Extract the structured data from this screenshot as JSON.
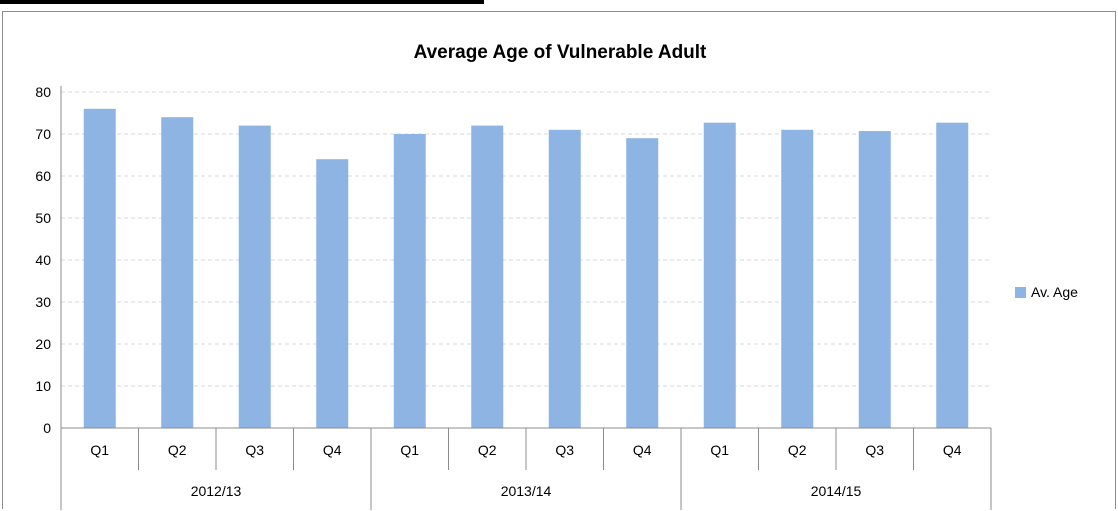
{
  "chart_data": {
    "type": "bar",
    "title": "Average Age of Vulnerable Adult",
    "xlabel": "",
    "ylabel": "",
    "ylim": [
      0,
      80
    ],
    "yticks": [
      0,
      10,
      20,
      30,
      40,
      50,
      60,
      70,
      80
    ],
    "grid": true,
    "legend_position": "right",
    "groups": [
      {
        "label": "2012/13",
        "categories": [
          "Q1",
          "Q2",
          "Q3",
          "Q4"
        ]
      },
      {
        "label": "2013/14",
        "categories": [
          "Q1",
          "Q2",
          "Q3",
          "Q4"
        ]
      },
      {
        "label": "2014/15",
        "categories": [
          "Q1",
          "Q2",
          "Q3",
          "Q4"
        ]
      }
    ],
    "series": [
      {
        "name": "Av. Age",
        "color": "#8eb4e3",
        "values": [
          76,
          74,
          72,
          64,
          70,
          72,
          71,
          69,
          72.7,
          71,
          70.7,
          72.7
        ]
      }
    ]
  }
}
